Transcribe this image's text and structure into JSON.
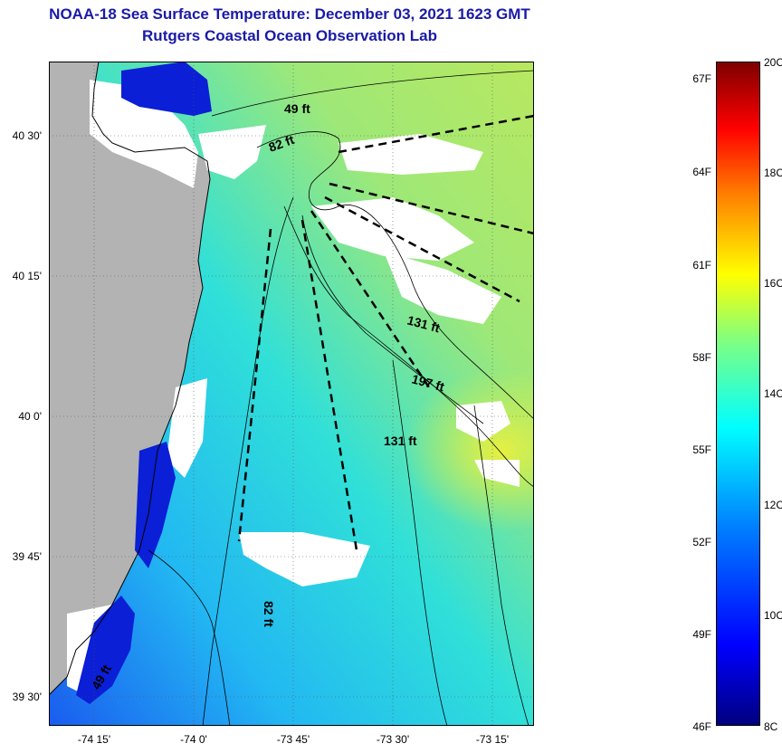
{
  "title": {
    "line1": "NOAA-18 Sea Surface Temperature:  December 03, 2021 1623 GMT",
    "line2": "Rutgers Coastal Ocean Observation Lab"
  },
  "map": {
    "lat_labels": [
      "40 30'",
      "40 15'",
      "40 0'",
      "39 45'",
      "39 30'"
    ],
    "lon_labels": [
      "-74 15'",
      "-74 0'",
      "-73 45'",
      "-73 30'",
      "-73 15'"
    ],
    "depth_labels": [
      "49 ft",
      "82 ft",
      "131 ft",
      "197 ft",
      "131 ft",
      "82 ft",
      "49 ft"
    ],
    "colors": {
      "land": "#b3b3b3",
      "cloud": "#ffffff",
      "cold": "#0a1fd6",
      "cool": "#20c8f0",
      "warm": "#a8e860"
    }
  },
  "colorbar": {
    "fahrenheit": [
      "67F",
      "64F",
      "61F",
      "58F",
      "55F",
      "52F",
      "49F",
      "46F"
    ],
    "celsius": [
      "20C",
      "18C",
      "16C",
      "14C",
      "12C",
      "10C",
      "8C"
    ]
  }
}
